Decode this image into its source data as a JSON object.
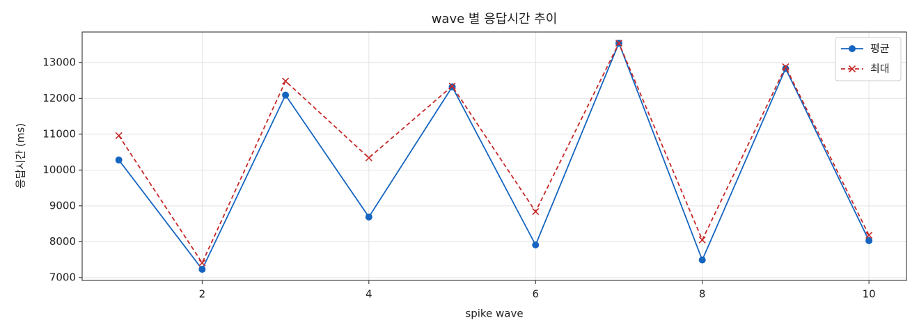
{
  "chart_data": {
    "type": "line",
    "title": "wave 별 응답시간 추이",
    "xlabel": "spike wave",
    "ylabel": "응답시간 (ms)",
    "x": [
      1,
      2,
      3,
      4,
      5,
      6,
      7,
      8,
      9,
      10
    ],
    "series": [
      {
        "name": "평균",
        "color": "#1565c0",
        "marker": "o",
        "linestyle": "solid",
        "values": [
          10280,
          7230,
          12090,
          8690,
          12320,
          7910,
          13540,
          7490,
          12830,
          8030
        ]
      },
      {
        "name": "최대",
        "color": "#c62828",
        "marker": "x",
        "linestyle": "dashed",
        "values": [
          10960,
          7410,
          12480,
          10340,
          12340,
          8840,
          13540,
          8050,
          12880,
          8180
        ]
      }
    ],
    "xlim": [
      0.56,
      10.45
    ],
    "ylim": [
      6920,
      13850
    ],
    "xticks": [
      2,
      4,
      6,
      8,
      10
    ],
    "yticks": [
      7000,
      8000,
      9000,
      10000,
      11000,
      12000,
      13000
    ],
    "grid": true,
    "legend": "upper right"
  }
}
